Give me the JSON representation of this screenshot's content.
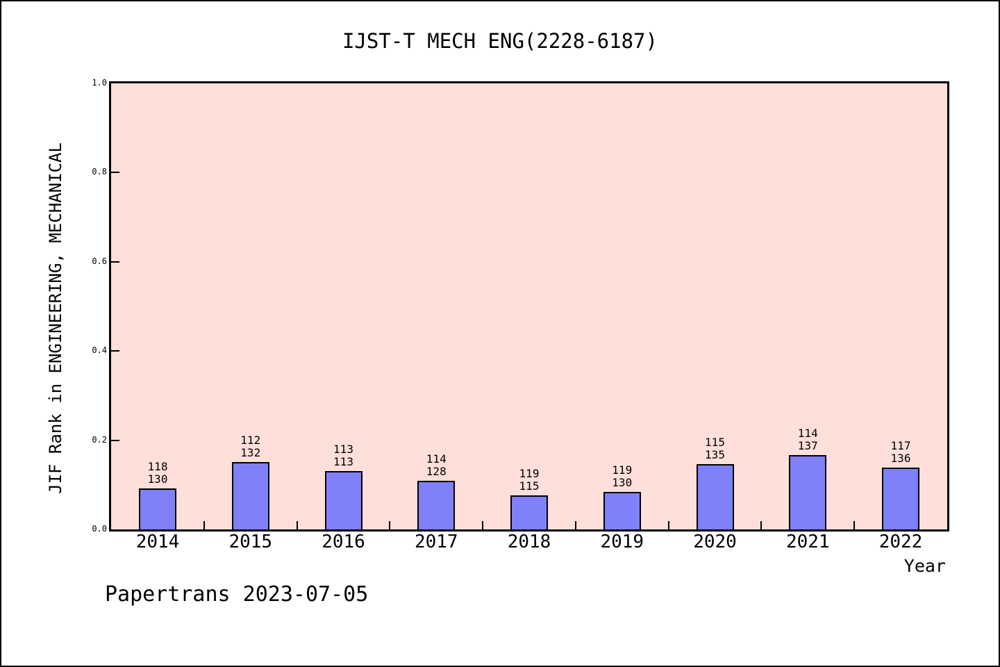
{
  "chart_data": {
    "type": "bar",
    "title": "IJST-T MECH ENG(2228-6187)",
    "xlabel": "Year",
    "ylabel": "JIF Rank in ENGINEERING, MECHANICAL",
    "footer": "Papertrans 2023-07-05",
    "ylim": [
      0.0,
      1.0
    ],
    "ytick_labels": [
      "0.0",
      "0.2",
      "0.4",
      "0.6",
      "0.8",
      "1.0"
    ],
    "grid": false,
    "legend": "none",
    "categories": [
      "2014",
      "2015",
      "2016",
      "2017",
      "2018",
      "2019",
      "2020",
      "2021",
      "2022"
    ],
    "values": [
      0.092,
      0.151,
      0.131,
      0.109,
      0.077,
      0.084,
      0.147,
      0.166,
      0.139
    ],
    "bar_labels": [
      [
        "118",
        "130"
      ],
      [
        "112",
        "132"
      ],
      [
        "113",
        "113"
      ],
      [
        "114",
        "128"
      ],
      [
        "119",
        "115"
      ],
      [
        "119",
        "130"
      ],
      [
        "115",
        "135"
      ],
      [
        "114",
        "137"
      ],
      [
        "117",
        "136"
      ]
    ],
    "colors": {
      "bar_fill": "#8080f8",
      "bar_edge": "#000000",
      "plot_background": "#ffdfda",
      "text": "#000000"
    }
  }
}
